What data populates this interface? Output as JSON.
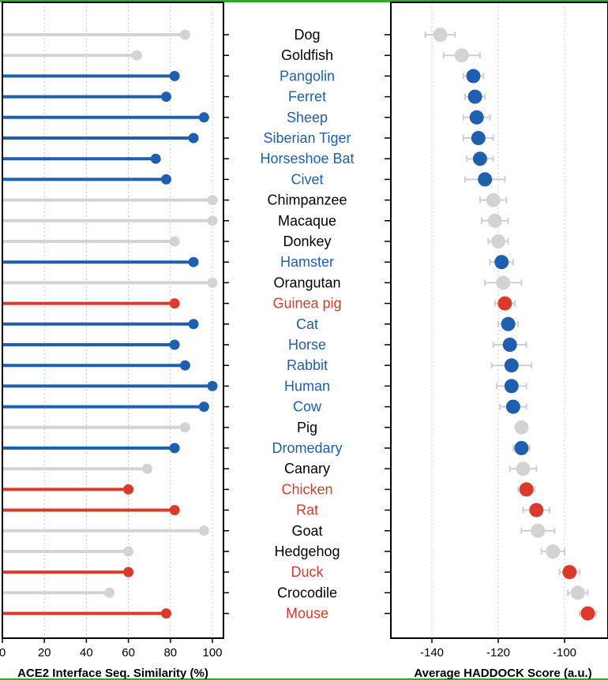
{
  "colors": {
    "blue": "#1f5fb0",
    "red": "#d93a2b",
    "gray": "#d3d3d3",
    "black": "#000000",
    "accent_bar": "#2ea82e",
    "grid": "#c8c8c8"
  },
  "chart_data": [
    {
      "type": "lollipop",
      "orientation": "horizontal",
      "xlabel": "ACE2 Interface Seq. Similarity (%)",
      "ylabel": "",
      "xlim": [
        0,
        105
      ],
      "xticks": [
        "0",
        "20",
        "40",
        "60",
        "80",
        "100"
      ],
      "grid": "vertical dotted",
      "categories": [
        "Dog",
        "Goldfish",
        "Pangolin",
        "Ferret",
        "Sheep",
        "Siberian Tiger",
        "Horseshoe Bat",
        "Civet",
        "Chimpanzee",
        "Macaque",
        "Donkey",
        "Hamster",
        "Orangutan",
        "Guinea pig",
        "Cat",
        "Horse",
        "Rabbit",
        "Human",
        "Cow",
        "Pig",
        "Dromedary",
        "Canary",
        "Chicken",
        "Rat",
        "Goat",
        "Hedgehog",
        "Duck",
        "Crocodile",
        "Mouse"
      ],
      "values": [
        87,
        64,
        82,
        78,
        96,
        91,
        73,
        78,
        100,
        100,
        82,
        91,
        100,
        82,
        91,
        82,
        87,
        100,
        96,
        87,
        82,
        69,
        60,
        82,
        96,
        60,
        60,
        51,
        78
      ],
      "groups": [
        "gray",
        "gray",
        "blue",
        "blue",
        "blue",
        "blue",
        "blue",
        "blue",
        "gray",
        "gray",
        "gray",
        "blue",
        "gray",
        "red",
        "blue",
        "blue",
        "blue",
        "blue",
        "blue",
        "gray",
        "blue",
        "gray",
        "red",
        "red",
        "gray",
        "gray",
        "red",
        "gray",
        "red"
      ]
    },
    {
      "type": "scatter",
      "subtype": "dot with error bars",
      "xlabel": "Average HADDOCK Score (a.u.)",
      "ylabel": "",
      "xlim": [
        -150,
        -89
      ],
      "xticks": [
        "-140",
        "-120",
        "-100"
      ],
      "grid": "vertical dotted",
      "categories": [
        "Dog",
        "Goldfish",
        "Pangolin",
        "Ferret",
        "Sheep",
        "Siberian Tiger",
        "Horseshoe Bat",
        "Civet",
        "Chimpanzee",
        "Macaque",
        "Donkey",
        "Hamster",
        "Orangutan",
        "Guinea pig",
        "Cat",
        "Horse",
        "Rabbit",
        "Human",
        "Cow",
        "Pig",
        "Dromedary",
        "Canary",
        "Chicken",
        "Rat",
        "Goat",
        "Hedgehog",
        "Duck",
        "Crocodile",
        "Mouse"
      ],
      "values": [
        -137.5,
        -131,
        -127.5,
        -127,
        -126.5,
        -126,
        -125.5,
        -124,
        -121.5,
        -121,
        -120,
        -119,
        -118.5,
        -118,
        -117,
        -116.5,
        -116,
        -116,
        -115.5,
        -113,
        -113,
        -112.5,
        -111.5,
        -108.5,
        -108,
        -103.5,
        -98.5,
        -96,
        -93
      ],
      "errors": [
        4.5,
        5.5,
        3,
        3,
        4,
        4.5,
        4,
        6,
        4,
        4,
        3,
        3.5,
        5.5,
        3,
        3,
        5,
        6,
        4.5,
        4,
        0,
        2.5,
        4,
        2.5,
        4,
        5,
        3.5,
        3,
        3,
        2.5
      ],
      "groups": [
        "gray",
        "gray",
        "blue",
        "blue",
        "blue",
        "blue",
        "blue",
        "blue",
        "gray",
        "gray",
        "gray",
        "blue",
        "gray",
        "red",
        "blue",
        "blue",
        "blue",
        "blue",
        "blue",
        "gray",
        "blue",
        "gray",
        "red",
        "red",
        "gray",
        "gray",
        "red",
        "gray",
        "red"
      ]
    }
  ]
}
